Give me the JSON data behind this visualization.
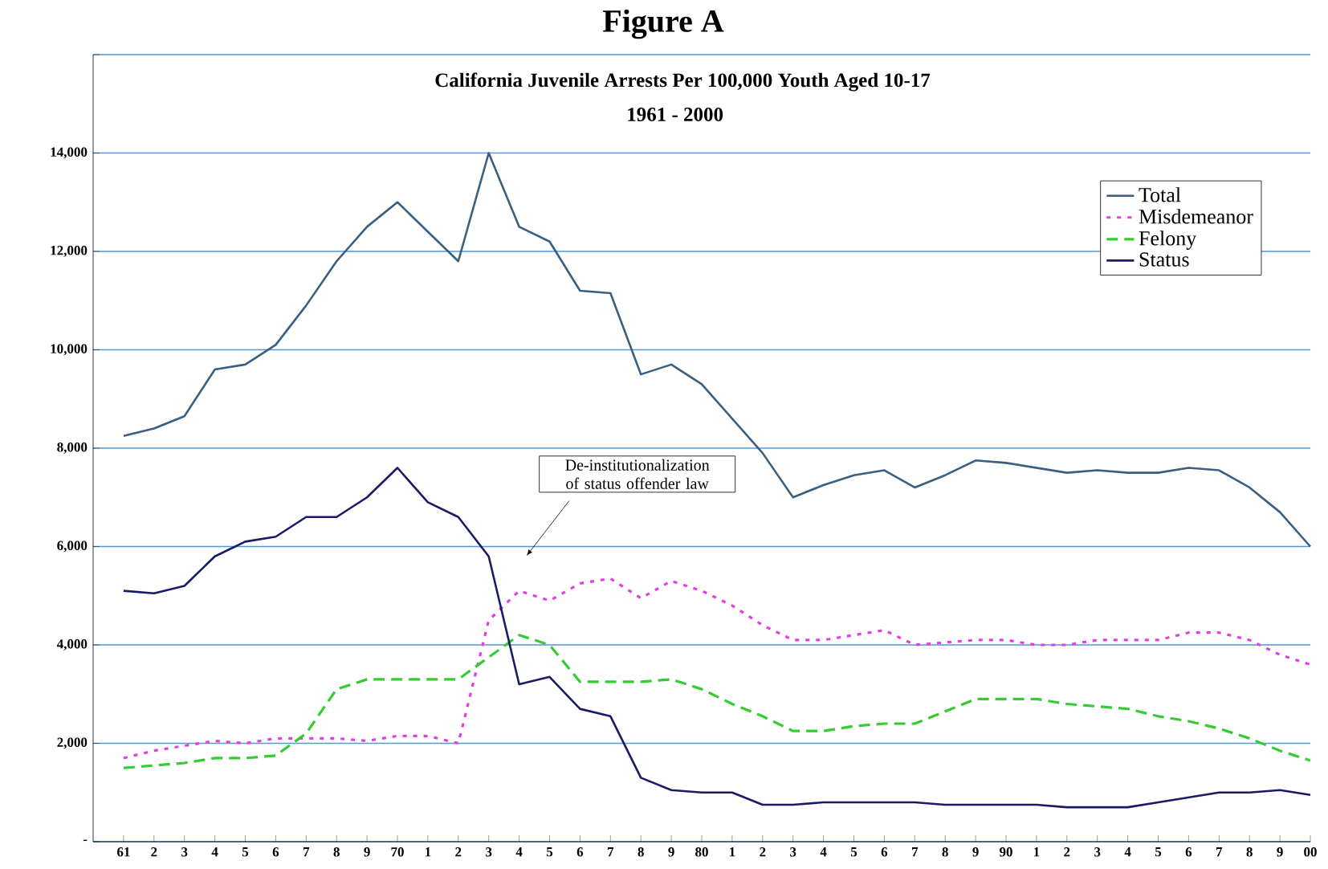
{
  "chart_data": {
    "type": "line",
    "title": "Figure A",
    "subtitle": "California Juvenile Arrests Per 100,000 Youth Aged 10-17",
    "annotations": [
      "1961 - 2000",
      "De-institutionalization of status offender law"
    ],
    "categories": [
      "61",
      "2",
      "3",
      "4",
      "5",
      "6",
      "7",
      "8",
      "9",
      "70",
      "1",
      "2",
      "3",
      "4",
      "5",
      "6",
      "7",
      "8",
      "9",
      "80",
      "1",
      "2",
      "3",
      "4",
      "5",
      "6",
      "7",
      "8",
      "9",
      "90",
      "1",
      "2",
      "3",
      "4",
      "5",
      "6",
      "7",
      "8",
      "9",
      "00"
    ],
    "series": [
      {
        "name": "Total",
        "color": "#3a5f7f",
        "line_style": "solid",
        "values": [
          8250,
          8400,
          8650,
          9600,
          9700,
          10100,
          10900,
          11800,
          12500,
          13000,
          12400,
          11800,
          14000,
          12500,
          12200,
          11200,
          11150,
          9500,
          9700,
          9300,
          8600,
          7900,
          7000,
          7250,
          7450,
          7550,
          7200,
          7450,
          7750,
          7700,
          7600,
          7500,
          7550,
          7500,
          7500,
          7600,
          7550,
          7200,
          6700,
          6000
        ]
      },
      {
        "name": "Misdemeanor",
        "color": "#e040e0",
        "line_style": "dotted",
        "values": [
          1700,
          1850,
          1950,
          2050,
          2000,
          2100,
          2100,
          2100,
          2050,
          2150,
          2150,
          2000,
          4500,
          5100,
          4900,
          5250,
          5350,
          4950,
          5300,
          5100,
          4800,
          4400,
          4100,
          4100,
          4200,
          4300,
          4000,
          4050,
          4100,
          4100,
          4000,
          4000,
          4100,
          4100,
          4100,
          4250,
          4250,
          4100,
          3800,
          3600
        ]
      },
      {
        "name": "Felony",
        "color": "#33cc33",
        "line_style": "dashed",
        "values": [
          1500,
          1550,
          1600,
          1700,
          1700,
          1750,
          2200,
          3100,
          3300,
          3300,
          3300,
          3300,
          3750,
          4200,
          4000,
          3250,
          3250,
          3250,
          3300,
          3100,
          2800,
          2550,
          2250,
          2250,
          2350,
          2400,
          2400,
          2650,
          2900,
          2900,
          2900,
          2800,
          2750,
          2700,
          2550,
          2450,
          2300,
          2100,
          1850,
          1650
        ]
      },
      {
        "name": "Status",
        "color": "#1a1a66",
        "line_style": "solid",
        "values": [
          5100,
          5050,
          5200,
          5800,
          6100,
          6200,
          6600,
          6600,
          7000,
          7600,
          6900,
          6600,
          5800,
          3200,
          3350,
          2700,
          2550,
          1300,
          1050,
          1000,
          1000,
          750,
          750,
          800,
          800,
          800,
          800,
          750,
          750,
          750,
          750,
          700,
          700,
          700,
          800,
          900,
          1000,
          1000,
          1050,
          950
        ]
      }
    ],
    "ylim": [
      0,
      16000
    ],
    "yticks": [
      {
        "value": 0,
        "label": "-"
      },
      {
        "value": 2000,
        "label": "2,000"
      },
      {
        "value": 4000,
        "label": "4,000"
      },
      {
        "value": 6000,
        "label": "6,000"
      },
      {
        "value": 8000,
        "label": "8,000"
      },
      {
        "value": 10000,
        "label": "10,000"
      },
      {
        "value": 12000,
        "label": "12,000"
      },
      {
        "value": 14000,
        "label": "14,000"
      },
      {
        "value": 16000,
        "label": null
      }
    ],
    "grid": "y",
    "legend": "top right"
  }
}
